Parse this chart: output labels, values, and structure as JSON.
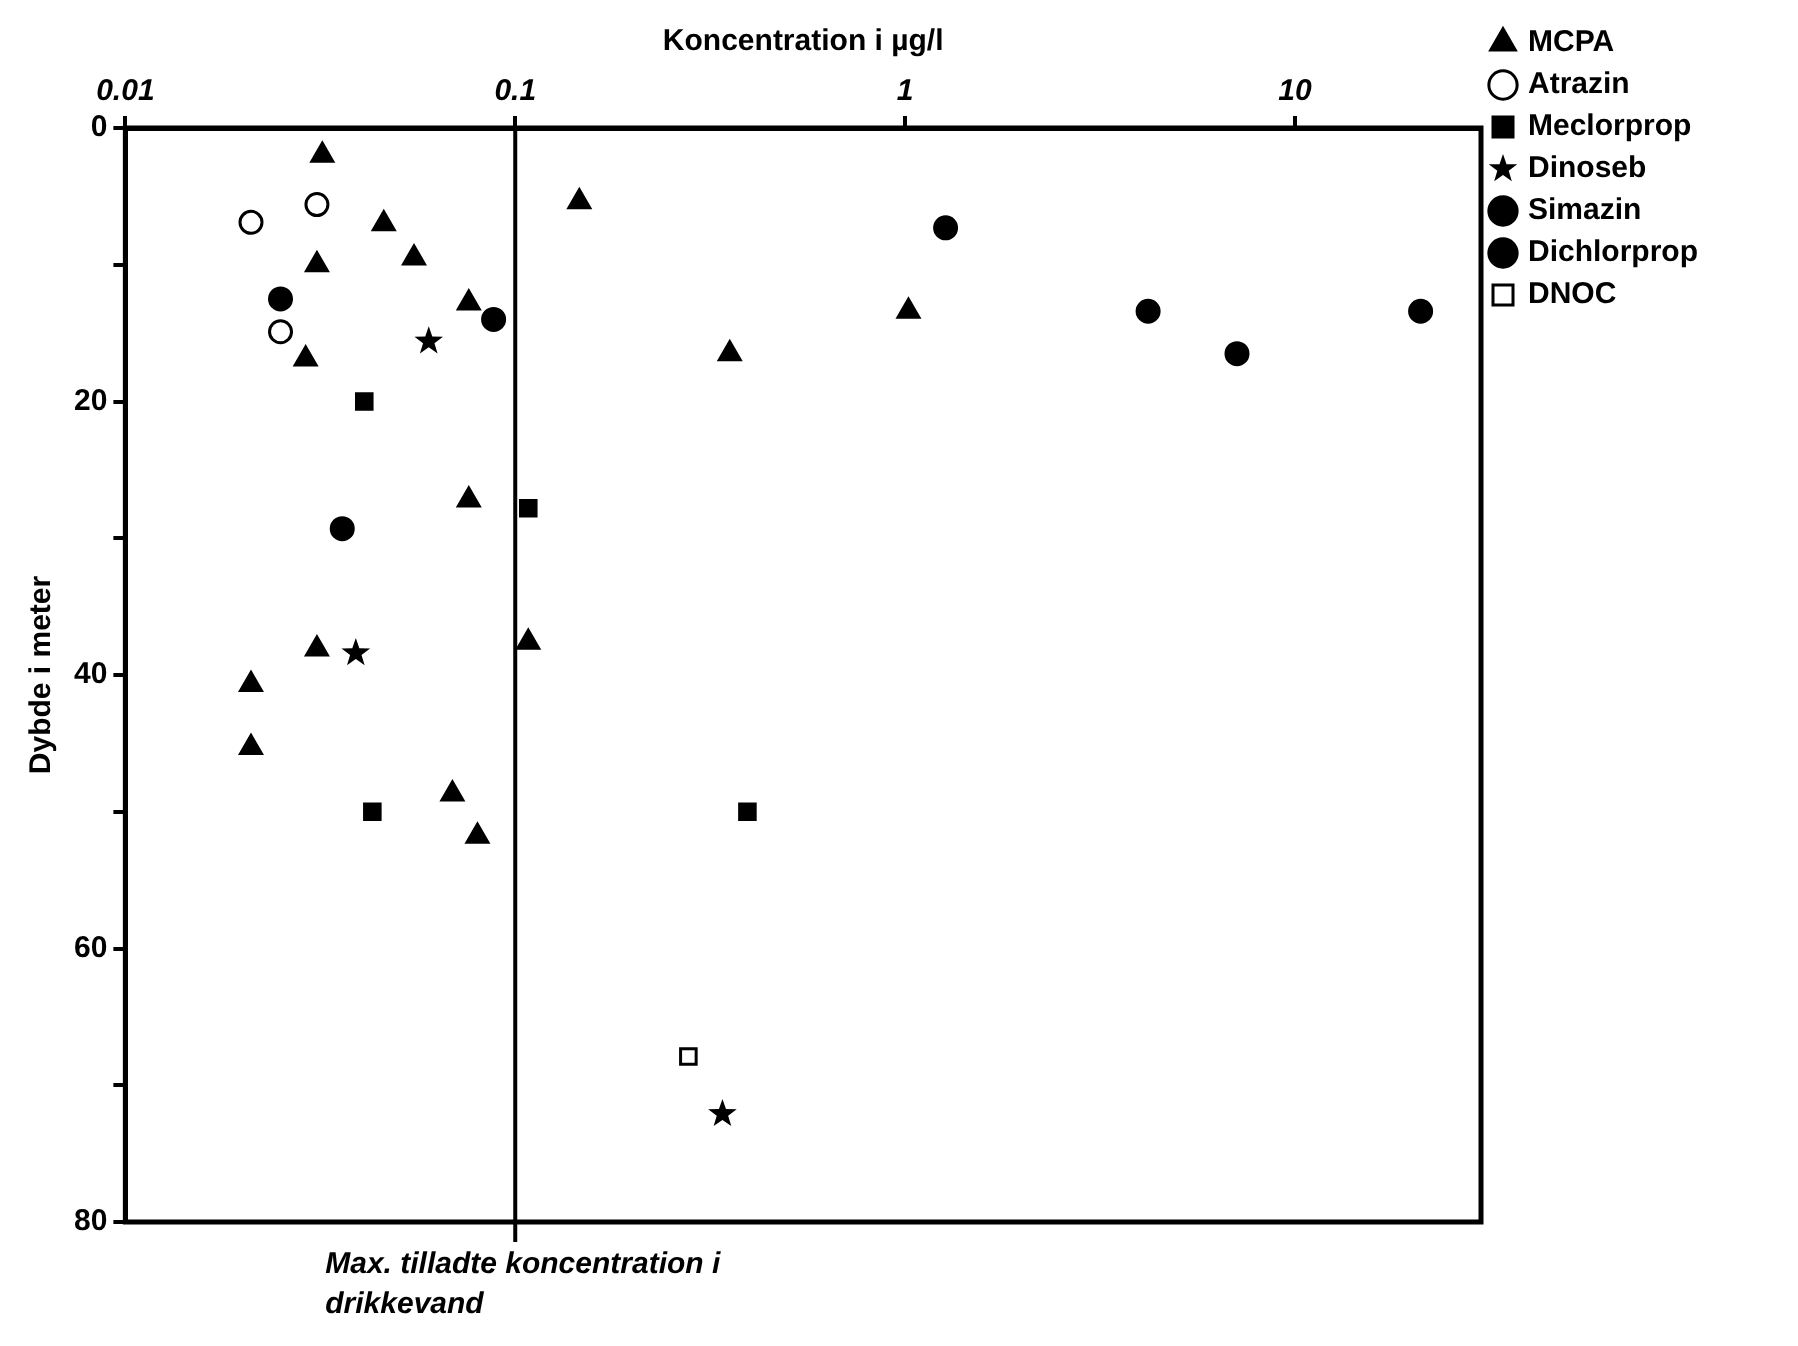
{
  "chart_data": {
    "type": "scatter",
    "xlabel": "Koncentration i µg/l",
    "ylabel": "Dybde i meter",
    "log": "x",
    "grid": false,
    "legend": "top right",
    "xlim": [
      0.01,
      30
    ],
    "xticks": [
      0.01,
      0.1,
      1,
      10
    ],
    "ylim": [
      80,
      0
    ],
    "yticks": [
      0,
      {
        "value": 10,
        "label": null
      },
      20,
      {
        "value": 30,
        "label": null
      },
      40,
      {
        "value": 50,
        "label": null
      },
      60,
      {
        "value": 70,
        "label": null
      },
      80
    ],
    "series": [
      {
        "name": "MCPA",
        "color": "#000000",
        "marker": "triangle",
        "x": [
          0.032,
          0.046,
          0.031,
          0.055,
          0.076,
          0.029,
          0.146,
          1.02,
          0.355,
          0.076,
          0.108,
          0.031,
          0.021,
          0.021,
          0.069,
          0.08
        ],
        "values": [
          2,
          7,
          10,
          9.5,
          12.8,
          16.9,
          5.4,
          13.4,
          16.5,
          27.2,
          37.6,
          38.1,
          40.7,
          45.3,
          48.7,
          51.8
        ]
      },
      {
        "name": "Atrazin",
        "color": "#ffffff",
        "marker": "circle",
        "x": [
          0.021,
          0.031,
          0.025
        ],
        "values": [
          6.9,
          5.6,
          14.9
        ]
      },
      {
        "name": "Meclorprop",
        "color": "#000000",
        "marker": "square",
        "x": [
          0.041,
          0.108,
          0.043,
          0.394
        ],
        "values": [
          20,
          27.8,
          50,
          50
        ]
      },
      {
        "name": "Dinoseb",
        "color": "#000000",
        "marker": "star",
        "x": [
          0.06,
          0.039,
          0.34
        ],
        "values": [
          15.6,
          38.4,
          72.1
        ]
      },
      {
        "name": "Simazin",
        "color": "#000000",
        "marker": "circle",
        "x": [
          0.025,
          0.036
        ],
        "values": [
          12.5,
          29.3
        ]
      },
      {
        "name": "Dichlorprop",
        "color": "#000000",
        "marker": "circle",
        "x": [
          0.088,
          1.27,
          4.2,
          7.1,
          21
        ],
        "values": [
          14,
          7.3,
          13.4,
          16.5,
          13.4
        ]
      },
      {
        "name": "DNOC",
        "color": "#ffffff",
        "marker": "square",
        "x": [
          0.278
        ],
        "values": [
          67.9
        ]
      }
    ],
    "ref_lines": [
      {
        "axis": "x",
        "value": 0.1,
        "label": "Max. tilladte koncentration i drikkevand",
        "color": "#000000"
      }
    ]
  }
}
